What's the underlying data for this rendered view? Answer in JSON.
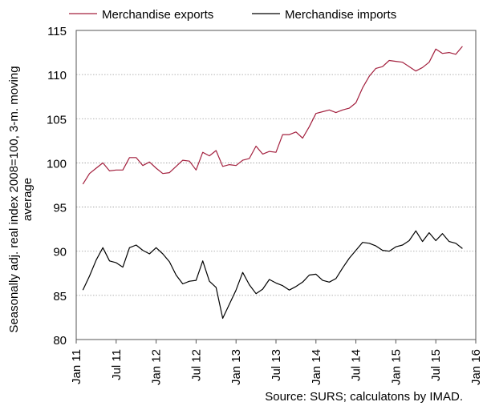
{
  "source_note": "Source: SURS; calculatons by IMAD.",
  "chart_data": {
    "type": "line",
    "ylabel": "Seasonally adj. real index 2008=100, 3-m. moving average",
    "ylabel_lines": [
      "Seasonally adj. real index 2008=100, 3-m. moving",
      "average"
    ],
    "ylim": [
      80,
      115
    ],
    "yticks": [
      80,
      85,
      90,
      95,
      100,
      105,
      110,
      115
    ],
    "xticks": [
      "Jan 11",
      "Jul 11",
      "Jan 12",
      "Jul 12",
      "Jan 13",
      "Jul 13",
      "Jan 14",
      "Jul 14",
      "Jan 15",
      "Jul 15",
      "Jan 16"
    ],
    "x_start": "2011-01",
    "x_end": "2016-01",
    "grid": true,
    "legend_position": "top",
    "series": [
      {
        "name": "Merchandise exports",
        "color": "#a3203e",
        "values": [
          97.6,
          98.8,
          99.4,
          100.0,
          99.1,
          99.2,
          99.2,
          100.6,
          100.6,
          99.7,
          100.1,
          99.4,
          98.8,
          98.9,
          99.6,
          100.3,
          100.2,
          99.2,
          101.2,
          100.8,
          101.4,
          99.6,
          99.8,
          99.7,
          100.3,
          100.5,
          101.9,
          101.0,
          101.3,
          101.2,
          103.2,
          103.2,
          103.5,
          102.8,
          104.1,
          105.6,
          105.8,
          106.0,
          105.7,
          106.0,
          106.2,
          106.8,
          108.5,
          109.8,
          110.7,
          110.9,
          111.6,
          111.5,
          111.4,
          110.9,
          110.4,
          110.8,
          111.4,
          112.9,
          112.4,
          112.5,
          112.3,
          113.2
        ]
      },
      {
        "name": "Merchandise imports",
        "color": "#000000",
        "values": [
          85.6,
          87.2,
          89.0,
          90.4,
          88.9,
          88.7,
          88.2,
          90.4,
          90.7,
          90.1,
          89.7,
          90.4,
          89.7,
          88.8,
          87.3,
          86.3,
          86.6,
          86.7,
          88.9,
          86.6,
          85.9,
          82.4,
          84.0,
          85.6,
          87.6,
          86.2,
          85.2,
          85.7,
          86.8,
          86.4,
          86.1,
          85.6,
          86.0,
          86.5,
          87.3,
          87.4,
          86.7,
          86.5,
          86.9,
          88.1,
          89.2,
          90.1,
          91.0,
          90.9,
          90.6,
          90.1,
          90.0,
          90.5,
          90.7,
          91.2,
          92.3,
          91.1,
          92.1,
          91.2,
          92.0,
          91.1,
          90.9,
          90.3
        ]
      }
    ]
  }
}
